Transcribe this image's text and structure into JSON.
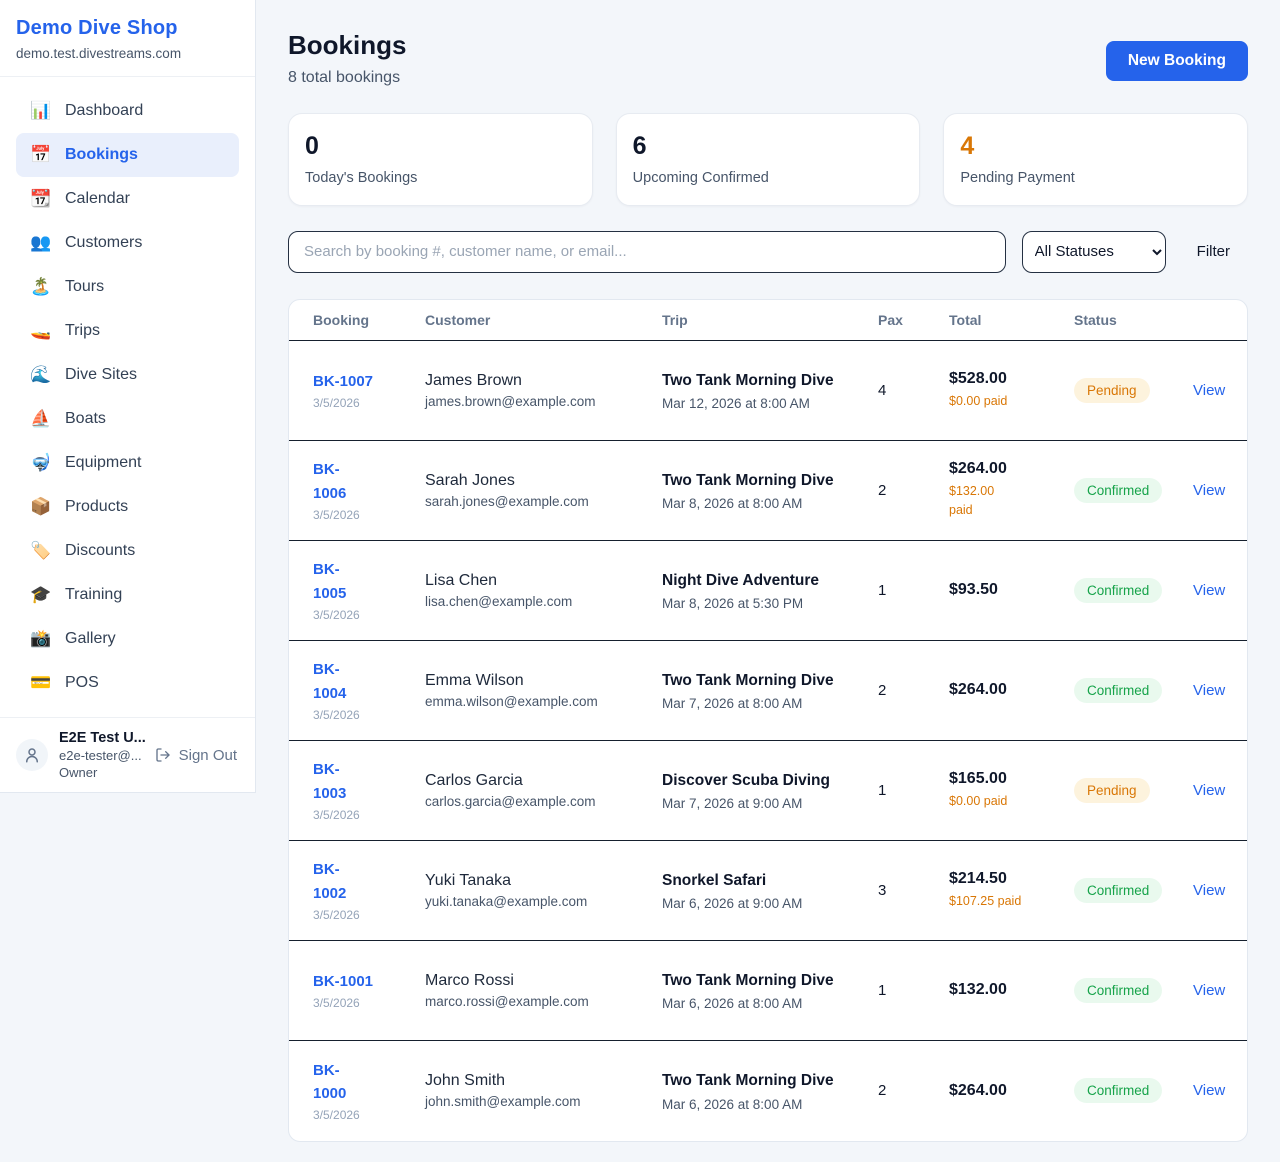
{
  "brand": {
    "name": "Demo Dive Shop",
    "domain": "demo.test.divestreams.com"
  },
  "sidebar": {
    "items": [
      {
        "label": "Dashboard",
        "icon": "📊",
        "active": false
      },
      {
        "label": "Bookings",
        "icon": "📅",
        "active": true
      },
      {
        "label": "Calendar",
        "icon": "📆",
        "active": false
      },
      {
        "label": "Customers",
        "icon": "👥",
        "active": false
      },
      {
        "label": "Tours",
        "icon": "🏝️",
        "active": false
      },
      {
        "label": "Trips",
        "icon": "🚤",
        "active": false
      },
      {
        "label": "Dive Sites",
        "icon": "🌊",
        "active": false
      },
      {
        "label": "Boats",
        "icon": "⛵",
        "active": false
      },
      {
        "label": "Equipment",
        "icon": "🤿",
        "active": false
      },
      {
        "label": "Products",
        "icon": "📦",
        "active": false
      },
      {
        "label": "Discounts",
        "icon": "🏷️",
        "active": false
      },
      {
        "label": "Training",
        "icon": "🎓",
        "active": false
      },
      {
        "label": "Gallery",
        "icon": "📸",
        "active": false
      },
      {
        "label": "POS",
        "icon": "💳",
        "active": false
      }
    ]
  },
  "user": {
    "name": "E2E Test U...",
    "email": "e2e-tester@...",
    "role": "Owner",
    "sign_out_label": "Sign Out"
  },
  "header": {
    "title": "Bookings",
    "subtitle": "8 total bookings",
    "new_booking_label": "New Booking"
  },
  "stats": [
    {
      "value": "0",
      "label": "Today's Bookings",
      "color": "#0f172a"
    },
    {
      "value": "6",
      "label": "Upcoming Confirmed",
      "color": "#0f172a"
    },
    {
      "value": "4",
      "label": "Pending Payment",
      "color": "#d97706"
    }
  ],
  "toolbar": {
    "search_placeholder": "Search by booking #, customer name, or email...",
    "status_filter_value": "All Statuses",
    "filter_label": "Filter"
  },
  "table": {
    "columns": [
      "Booking",
      "Customer",
      "Trip",
      "Pax",
      "Total",
      "Status"
    ],
    "rows": [
      {
        "id": "BK-1007",
        "id_wrap": false,
        "date": "3/5/2026",
        "customer": "James Brown",
        "email": "james.brown@example.com",
        "trip": "Two Tank Morning Dive",
        "trip_date": "Mar 12, 2026 at 8:00 AM",
        "pax": "4",
        "total": "$528.00",
        "paid": "$0.00 paid",
        "paid_wrap": false,
        "status": "Pending",
        "view_label": "View"
      },
      {
        "id": "BK-1006",
        "id_wrap": true,
        "date": "3/5/2026",
        "customer": "Sarah Jones",
        "email": "sarah.jones@example.com",
        "trip": "Two Tank Morning Dive",
        "trip_date": "Mar 8, 2026 at 8:00 AM",
        "pax": "2",
        "total": "$264.00",
        "paid": "$132.00 paid",
        "paid_wrap": true,
        "status": "Confirmed",
        "view_label": "View"
      },
      {
        "id": "BK-1005",
        "id_wrap": true,
        "date": "3/5/2026",
        "customer": "Lisa Chen",
        "email": "lisa.chen@example.com",
        "trip": "Night Dive Adventure",
        "trip_date": "Mar 8, 2026 at 5:30 PM",
        "pax": "1",
        "total": "$93.50",
        "paid": "",
        "paid_wrap": false,
        "status": "Confirmed",
        "view_label": "View"
      },
      {
        "id": "BK-1004",
        "id_wrap": true,
        "date": "3/5/2026",
        "customer": "Emma Wilson",
        "email": "emma.wilson@example.com",
        "trip": "Two Tank Morning Dive",
        "trip_date": "Mar 7, 2026 at 8:00 AM",
        "pax": "2",
        "total": "$264.00",
        "paid": "",
        "paid_wrap": false,
        "status": "Confirmed",
        "view_label": "View"
      },
      {
        "id": "BK-1003",
        "id_wrap": true,
        "date": "3/5/2026",
        "customer": "Carlos Garcia",
        "email": "carlos.garcia@example.com",
        "trip": "Discover Scuba Diving",
        "trip_date": "Mar 7, 2026 at 9:00 AM",
        "pax": "1",
        "total": "$165.00",
        "paid": "$0.00 paid",
        "paid_wrap": false,
        "status": "Pending",
        "view_label": "View"
      },
      {
        "id": "BK-1002",
        "id_wrap": true,
        "date": "3/5/2026",
        "customer": "Yuki Tanaka",
        "email": "yuki.tanaka@example.com",
        "trip": "Snorkel Safari",
        "trip_date": "Mar 6, 2026 at 9:00 AM",
        "pax": "3",
        "total": "$214.50",
        "paid": "$107.25 paid",
        "paid_wrap": false,
        "status": "Confirmed",
        "view_label": "View"
      },
      {
        "id": "BK-1001",
        "id_wrap": false,
        "date": "3/5/2026",
        "customer": "Marco Rossi",
        "email": "marco.rossi@example.com",
        "trip": "Two Tank Morning Dive",
        "trip_date": "Mar 6, 2026 at 8:00 AM",
        "pax": "1",
        "total": "$132.00",
        "paid": "",
        "paid_wrap": false,
        "status": "Confirmed",
        "view_label": "View"
      },
      {
        "id": "BK-1000",
        "id_wrap": true,
        "date": "3/5/2026",
        "customer": "John Smith",
        "email": "john.smith@example.com",
        "trip": "Two Tank Morning Dive",
        "trip_date": "Mar 6, 2026 at 8:00 AM",
        "pax": "2",
        "total": "$264.00",
        "paid": "",
        "paid_wrap": false,
        "status": "Confirmed",
        "view_label": "View"
      }
    ]
  },
  "colors": {
    "accent": "#2563eb",
    "pending_text": "#d97706",
    "pending_bg": "#fdf3dd",
    "confirmed_text": "#16a34a",
    "confirmed_bg": "#e9f9ee",
    "row_divider": "#16202e",
    "page_bg": "#f3f6fa"
  }
}
